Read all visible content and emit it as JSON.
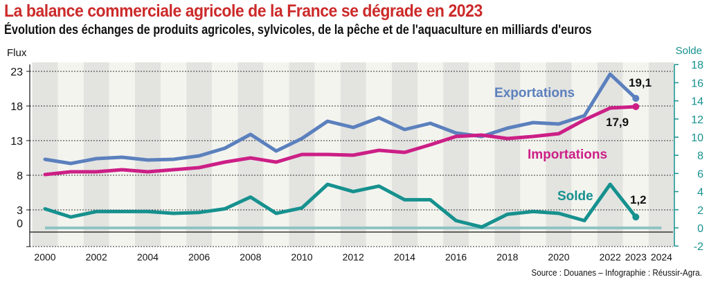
{
  "title": "La balance commerciale agricole de la France se dégrade en 2023",
  "subtitle": "Évolution des échanges de produits agricoles, sylvicoles, de la pêche et de l'aquaculture en milliards d'euros",
  "source": "Source : Douanes – Infographie : Réussir-Agra.",
  "chart_data": {
    "type": "line",
    "x": [
      2000,
      2001,
      2002,
      2003,
      2004,
      2005,
      2006,
      2007,
      2008,
      2009,
      2010,
      2011,
      2012,
      2013,
      2014,
      2015,
      2016,
      2017,
      2018,
      2019,
      2020,
      2021,
      2022,
      2023
    ],
    "x_tick_labels": [
      "2000",
      "2002",
      "2004",
      "2006",
      "2008",
      "2010",
      "2012",
      "2014",
      "2016",
      "2018",
      "2020",
      "2022",
      "2023",
      "2024"
    ],
    "left_axis": {
      "label": "Flux",
      "ticks": [
        "23",
        "18",
        "13",
        "8",
        "3",
        "0"
      ]
    },
    "right_axis": {
      "label": "Solde",
      "ticks": [
        "18",
        "16",
        "14",
        "12",
        "10",
        "8",
        "6",
        "4",
        "2",
        "0",
        "-2"
      ],
      "ylim": [
        -2,
        18
      ]
    },
    "grid": true,
    "series": [
      {
        "name": "Exportations",
        "axis": "left",
        "color": "#5b80bd",
        "values": [
          10.3,
          9.7,
          10.4,
          10.6,
          10.2,
          10.3,
          10.8,
          11.9,
          13.9,
          11.5,
          13.3,
          15.8,
          14.9,
          16.3,
          14.6,
          15.5,
          14.1,
          13.6,
          14.8,
          15.6,
          15.4,
          16.6,
          22.6,
          19.1
        ],
        "end_label": "19,1"
      },
      {
        "name": "Importations",
        "axis": "left",
        "color": "#cc1f86",
        "values": [
          8.1,
          8.5,
          8.5,
          8.8,
          8.5,
          8.8,
          9.1,
          9.9,
          10.5,
          9.9,
          11.0,
          11.0,
          10.9,
          11.6,
          11.3,
          12.4,
          13.6,
          13.8,
          13.3,
          13.6,
          14.0,
          16.0,
          17.7,
          17.9
        ],
        "end_label": "17,9"
      },
      {
        "name": "Solde",
        "axis": "right",
        "color": "#16918e",
        "values": [
          2.1,
          1.2,
          1.8,
          1.8,
          1.8,
          1.6,
          1.7,
          2.1,
          3.4,
          1.6,
          2.2,
          4.8,
          4.0,
          4.6,
          3.1,
          3.1,
          0.8,
          0.1,
          1.5,
          1.8,
          1.6,
          0.8,
          4.8,
          1.2
        ],
        "end_label": "1,2"
      }
    ]
  }
}
